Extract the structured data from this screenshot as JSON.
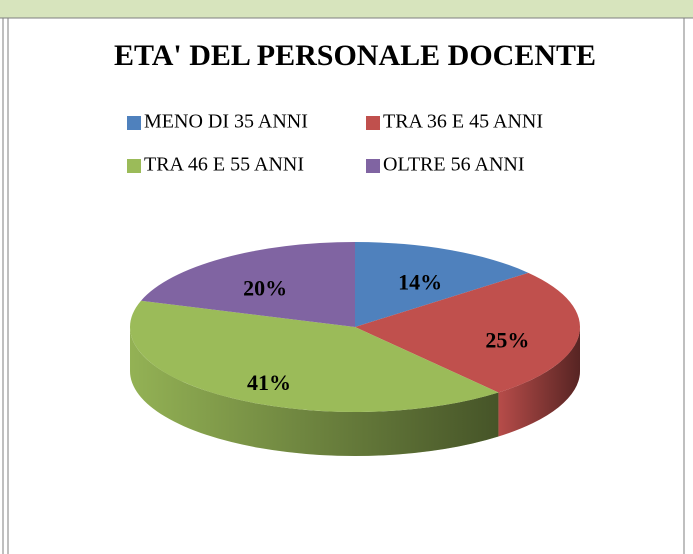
{
  "chart_data": {
    "type": "pie3d",
    "title": "ETA' DEL PERSONALE DOCENTE",
    "categories": [
      "MENO DI 35 ANNI",
      "TRA 36 E 45 ANNI",
      "TRA 46 E 55 ANNI",
      "OLTRE 56 ANNI"
    ],
    "values": [
      14,
      25,
      41,
      20
    ],
    "value_labels": [
      "14%",
      "25%",
      "41%",
      "20%"
    ],
    "colors": [
      "#4f81bd",
      "#c0504d",
      "#9bbb59",
      "#8064a2"
    ],
    "legend": "top"
  }
}
